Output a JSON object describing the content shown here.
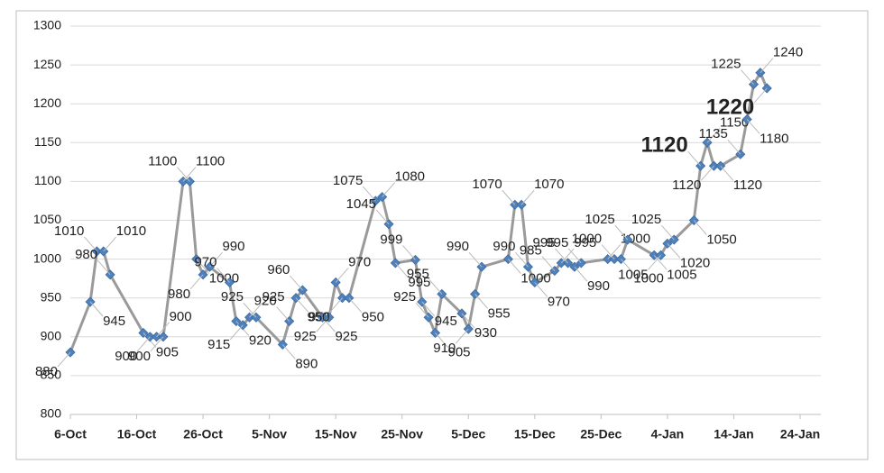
{
  "chart_data": {
    "type": "line",
    "x": [
      "6-Oct",
      "9-Oct",
      "10-Oct",
      "11-Oct",
      "12-Oct",
      "17-Oct",
      "18-Oct",
      "19-Oct",
      "20-Oct",
      "23-Oct",
      "24-Oct",
      "25-Oct",
      "26-Oct",
      "27-Oct",
      "30-Oct",
      "31-Oct",
      "1-Nov",
      "2-Nov",
      "3-Nov",
      "7-Nov",
      "8-Nov",
      "9-Nov",
      "10-Nov",
      "13-Nov",
      "14-Nov",
      "15-Nov",
      "16-Nov",
      "17-Nov",
      "21-Nov",
      "22-Nov",
      "23-Nov",
      "24-Nov",
      "27-Nov",
      "28-Nov",
      "29-Nov",
      "30-Nov",
      "1-Dec",
      "4-Dec",
      "5-Dec",
      "6-Dec",
      "7-Dec",
      "11-Dec",
      "12-Dec",
      "13-Dec",
      "14-Dec",
      "15-Dec",
      "18-Dec",
      "19-Dec",
      "20-Dec",
      "21-Dec",
      "22-Dec",
      "26-Dec",
      "27-Dec",
      "28-Dec",
      "29-Dec",
      "2-Jan",
      "3-Jan",
      "4-Jan",
      "5-Jan",
      "8-Jan",
      "9-Jan",
      "10-Jan",
      "11-Jan",
      "12-Jan",
      "15-Jan",
      "16-Jan",
      "17-Jan",
      "18-Jan",
      "19-Jan"
    ],
    "series": [
      {
        "color": "#9a9a9a",
        "marker_color": "#4f81bd",
        "values": [
          880,
          945,
          1010,
          1010,
          980,
          905,
          900,
          900,
          900,
          1100,
          1100,
          1000,
          980,
          990,
          970,
          920,
          915,
          925,
          925,
          890,
          920,
          950,
          960,
          925,
          925,
          970,
          950,
          950,
          1075,
          1080,
          1045,
          995,
          999,
          945,
          925,
          905,
          955,
          930,
          910,
          955,
          990,
          1000,
          1070,
          1070,
          990,
          970,
          985,
          995,
          995,
          990,
          995,
          1000,
          1000,
          1000,
          1025,
          1005,
          1005,
          1020,
          1025,
          1050,
          1120,
          1150,
          1120,
          1120,
          1135,
          1180,
          1225,
          1240,
          1220
        ]
      }
    ],
    "xlim": [
      "6-Oct",
      "24-Jan"
    ],
    "xticks": [
      "6-Oct",
      "16-Oct",
      "26-Oct",
      "5-Nov",
      "15-Nov",
      "25-Nov",
      "5-Dec",
      "15-Dec",
      "25-Dec",
      "4-Jan",
      "14-Jan",
      "24-Jan"
    ],
    "ylim": [
      800,
      1300
    ],
    "yticks": [
      800,
      850,
      900,
      950,
      1000,
      1050,
      1100,
      1150,
      1200,
      1250,
      1300
    ],
    "grid": true
  }
}
